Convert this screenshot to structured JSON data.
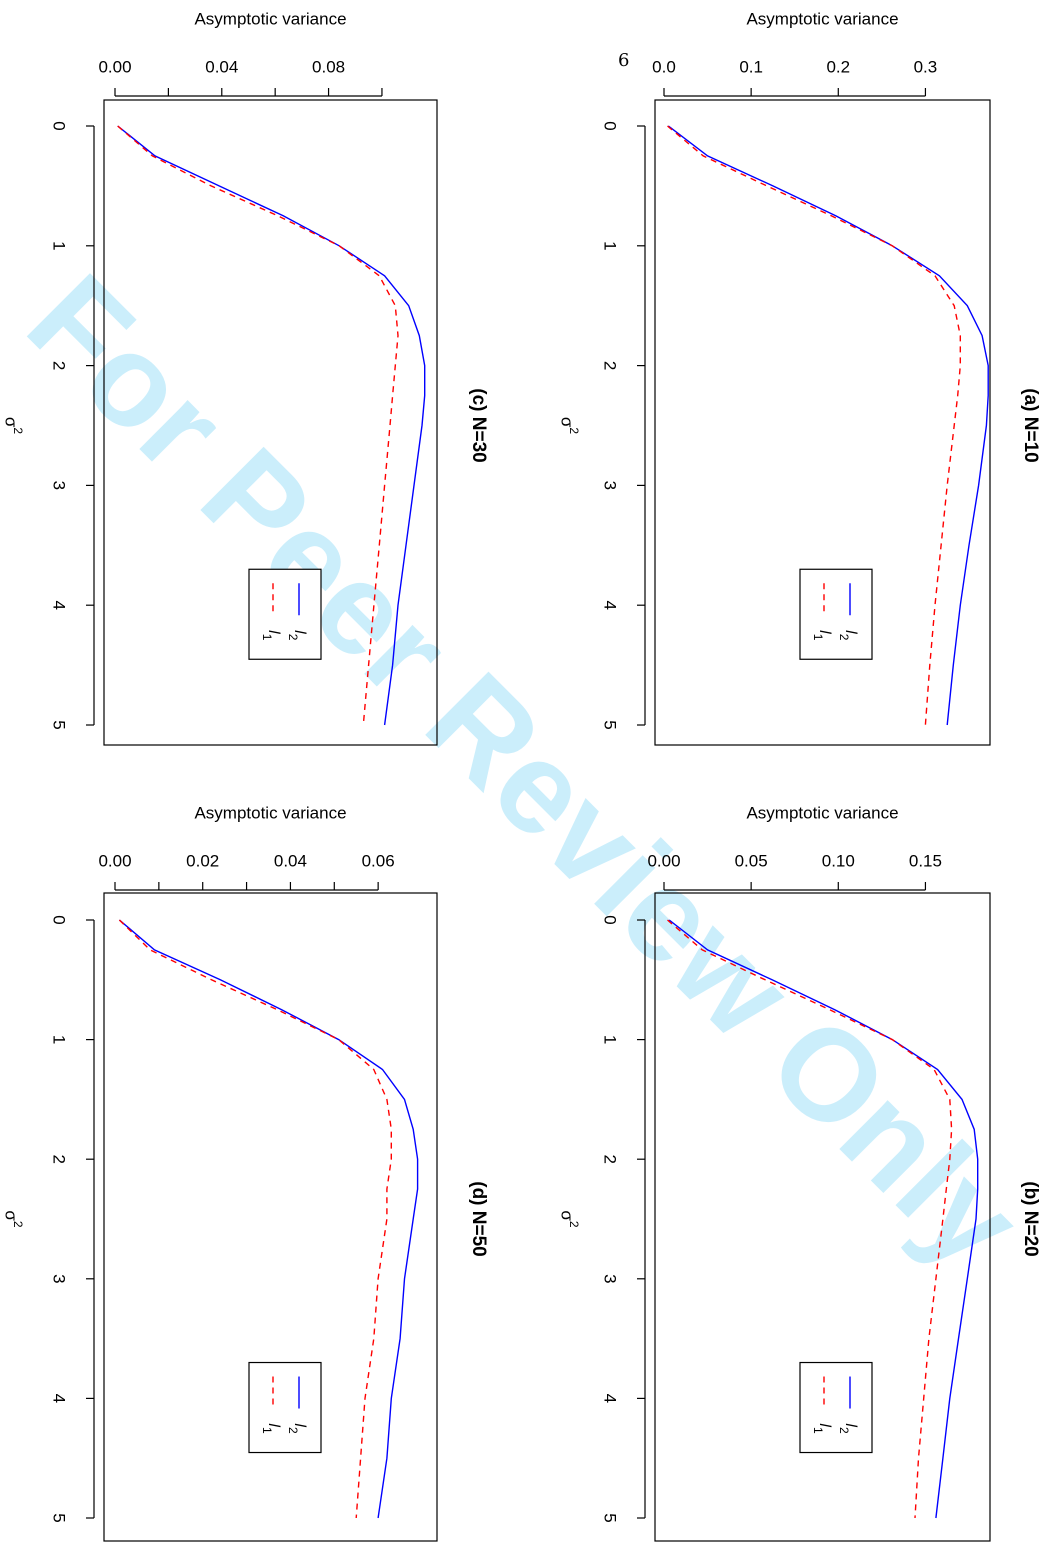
{
  "page_number": "6",
  "watermark": "For Peer Review Only",
  "chart_data": [
    {
      "type": "line",
      "title": "(a) N=10",
      "xlabel": "σ²",
      "ylabel": "Asymptotic variance",
      "xlim": [
        0,
        5
      ],
      "ylim": [
        0,
        0.35
      ],
      "x_ticks": [
        0,
        1,
        2,
        3,
        4,
        5
      ],
      "y_ticks": [
        0.0,
        0.1,
        0.2,
        0.3
      ],
      "y_tick_labels": [
        "0.0",
        "0.1",
        "0.2",
        "0.3"
      ],
      "legend": "lower-left",
      "x": [
        0,
        0.25,
        0.5,
        0.75,
        1.0,
        1.25,
        1.5,
        1.75,
        2.0,
        2.25,
        2.5,
        3.0,
        3.5,
        4.0,
        4.5,
        5.0
      ],
      "series": [
        {
          "name": "l2",
          "color": "#0000ff",
          "dash": "solid",
          "values": [
            0.005,
            0.05,
            0.125,
            0.197,
            0.262,
            0.316,
            0.348,
            0.365,
            0.372,
            0.372,
            0.37,
            0.361,
            0.35,
            0.34,
            0.332,
            0.325
          ]
        },
        {
          "name": "l1",
          "color": "#ff0000",
          "dash": "dashed",
          "values": [
            0.004,
            0.045,
            0.118,
            0.192,
            0.262,
            0.311,
            0.333,
            0.34,
            0.34,
            0.337,
            0.333,
            0.325,
            0.318,
            0.311,
            0.305,
            0.3
          ]
        }
      ]
    },
    {
      "type": "line",
      "title": "(b) N=20",
      "xlabel": "σ²",
      "ylabel": "Asymptotic variance",
      "xlim": [
        0,
        5
      ],
      "ylim": [
        0,
        0.175
      ],
      "x_ticks": [
        0,
        1,
        2,
        3,
        4,
        5
      ],
      "y_ticks": [
        0.0,
        0.05,
        0.1,
        0.15
      ],
      "y_tick_labels": [
        "0.00",
        "0.05",
        "0.10",
        "0.15"
      ],
      "legend": "lower-left",
      "x": [
        0,
        0.25,
        0.5,
        0.75,
        1.0,
        1.25,
        1.5,
        1.75,
        2.0,
        2.25,
        2.5,
        3.0,
        3.5,
        4.0,
        4.5,
        5.0
      ],
      "series": [
        {
          "name": "l2",
          "color": "#0000ff",
          "dash": "solid",
          "values": [
            0.003,
            0.025,
            0.062,
            0.098,
            0.131,
            0.157,
            0.171,
            0.178,
            0.18,
            0.18,
            0.179,
            0.174,
            0.169,
            0.164,
            0.16,
            0.156
          ]
        },
        {
          "name": "l1",
          "color": "#ff0000",
          "dash": "dashed",
          "values": [
            0.002,
            0.022,
            0.058,
            0.095,
            0.131,
            0.155,
            0.164,
            0.165,
            0.164,
            0.162,
            0.16,
            0.156,
            0.152,
            0.149,
            0.146,
            0.144
          ]
        }
      ]
    },
    {
      "type": "line",
      "title": "(c) N=30",
      "xlabel": "σ²",
      "ylabel": "Asymptotic variance",
      "xlim": [
        0,
        5
      ],
      "ylim": [
        0,
        0.115
      ],
      "x_ticks": [
        0,
        1,
        2,
        3,
        4,
        5
      ],
      "y_ticks": [
        0.0,
        0.02,
        0.04,
        0.06,
        0.08,
        0.1
      ],
      "y_tick_labels": [
        "0.00",
        "",
        "0.04",
        "",
        "0.08",
        ""
      ],
      "legend": "lower-left",
      "x": [
        0,
        0.25,
        0.5,
        0.75,
        1.0,
        1.25,
        1.5,
        1.75,
        2.0,
        2.25,
        2.5,
        3.0,
        3.5,
        4.0,
        4.5,
        5.0
      ],
      "series": [
        {
          "name": "l2",
          "color": "#0000ff",
          "dash": "solid",
          "values": [
            0.001,
            0.015,
            0.039,
            0.063,
            0.084,
            0.101,
            0.11,
            0.114,
            0.116,
            0.116,
            0.115,
            0.112,
            0.109,
            0.106,
            0.104,
            0.101
          ]
        },
        {
          "name": "l1",
          "color": "#ff0000",
          "dash": "dashed",
          "values": [
            0.001,
            0.014,
            0.036,
            0.061,
            0.084,
            0.099,
            0.105,
            0.106,
            0.105,
            0.104,
            0.103,
            0.101,
            0.099,
            0.097,
            0.095,
            0.093
          ]
        }
      ]
    },
    {
      "type": "line",
      "title": "(d) N=50",
      "xlabel": "σ²",
      "ylabel": "Asymptotic variance",
      "xlim": [
        0,
        5
      ],
      "ylim": [
        0,
        0.07
      ],
      "x_ticks": [
        0,
        1,
        2,
        3,
        4,
        5
      ],
      "y_ticks": [
        0.0,
        0.01,
        0.02,
        0.03,
        0.04,
        0.05,
        0.06
      ],
      "y_tick_labels": [
        "0.00",
        "",
        "0.02",
        "",
        "0.04",
        "",
        "0.06"
      ],
      "legend": "lower-left",
      "x": [
        0,
        0.25,
        0.5,
        0.75,
        1.0,
        1.25,
        1.5,
        1.75,
        2.0,
        2.25,
        2.5,
        3.0,
        3.5,
        4.0,
        4.5,
        5.0
      ],
      "series": [
        {
          "name": "l2",
          "color": "#0000ff",
          "dash": "solid",
          "values": [
            0.001,
            0.009,
            0.024,
            0.038,
            0.051,
            0.061,
            0.066,
            0.068,
            0.069,
            0.069,
            0.068,
            0.066,
            0.065,
            0.063,
            0.062,
            0.06
          ]
        },
        {
          "name": "l1",
          "color": "#ff0000",
          "dash": "dashed",
          "values": [
            0.001,
            0.008,
            0.022,
            0.037,
            0.051,
            0.059,
            0.062,
            0.063,
            0.063,
            0.062,
            0.062,
            0.06,
            0.059,
            0.057,
            0.056,
            0.055
          ]
        }
      ]
    }
  ]
}
